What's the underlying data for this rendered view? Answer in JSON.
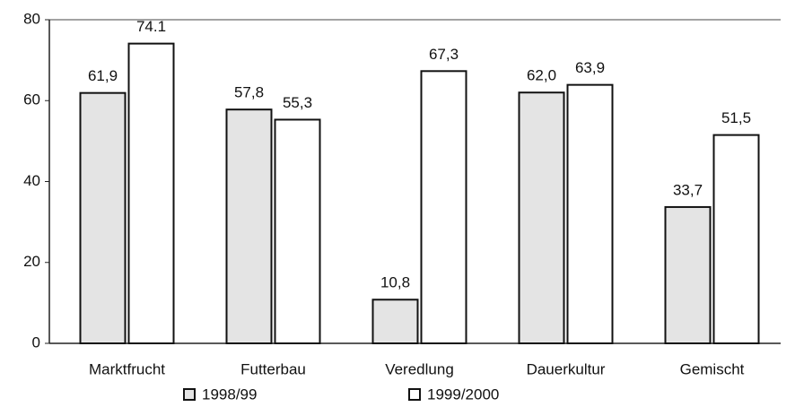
{
  "chart_data": {
    "type": "bar",
    "categories": [
      "Marktfrucht",
      "Futterbau",
      "Veredlung",
      "Dauerkultur",
      "Gemischt"
    ],
    "series": [
      {
        "name": "1998/99",
        "color": "#e4e4e4",
        "values": [
          61.9,
          57.8,
          10.8,
          62.0,
          33.7
        ],
        "value_labels": [
          "61,9",
          "57,8",
          "10,8",
          "62,0",
          "33,7"
        ]
      },
      {
        "name": "1999/2000",
        "color": "#ffffff",
        "values": [
          74.1,
          55.3,
          67.3,
          63.9,
          51.5
        ],
        "value_labels": [
          "74.1",
          "55,3",
          "67,3",
          "63,9",
          "51,5"
        ]
      }
    ],
    "ylim": [
      0,
      80
    ],
    "yticks": [
      0,
      20,
      40,
      60,
      80
    ],
    "grid": false,
    "legend": "bottom"
  }
}
